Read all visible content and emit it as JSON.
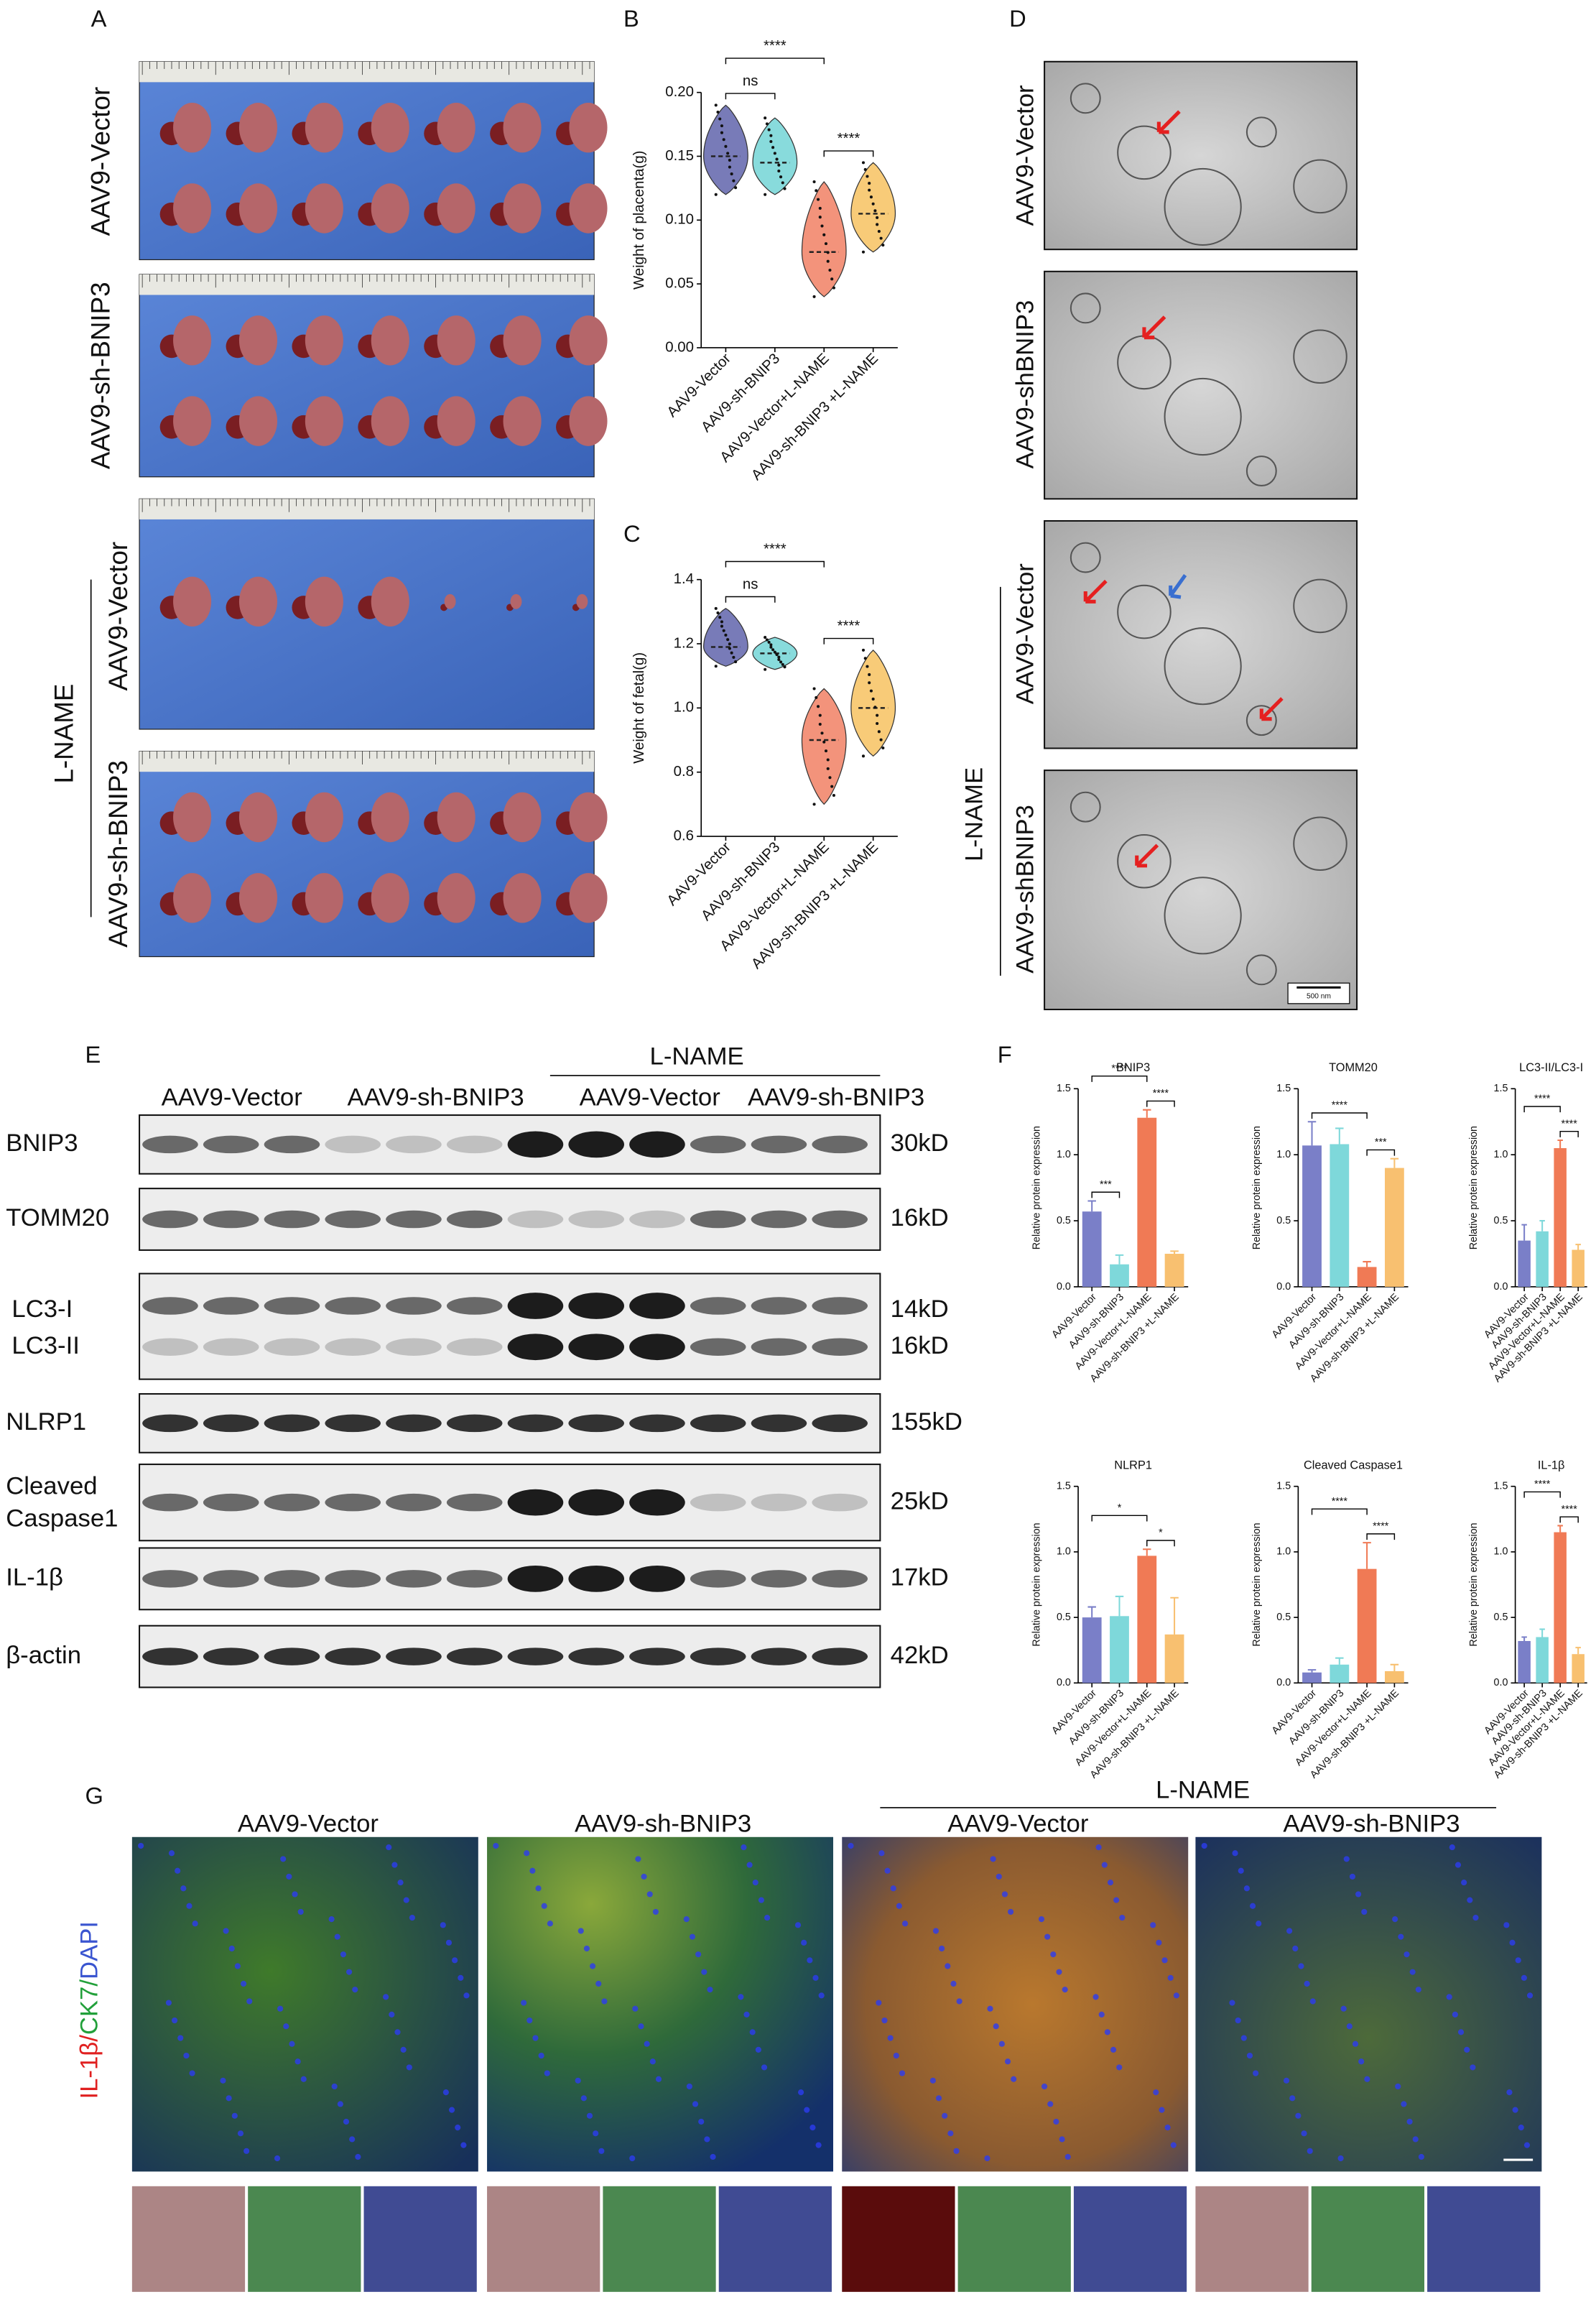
{
  "panel_labels": [
    "A",
    "B",
    "C",
    "D",
    "E",
    "F",
    "G"
  ],
  "panel_a": {
    "groups": [
      "AAV9-Vector",
      "AAV9-sh-BNIP3",
      "AAV9-Vector",
      "AAV9-sh-BNIP3"
    ],
    "treatment": "L-NAME"
  },
  "panel_d": {
    "groups": [
      "AAV9-Vector",
      "AAV9-shBNIP3",
      "AAV9-Vector",
      "AAV9-shBNIP3"
    ],
    "treatment": "L-NAME",
    "scale_bar": "500 nm"
  },
  "panel_e": {
    "treatment": "L-NAME",
    "groups": [
      "AAV9-Vector",
      "AAV9-sh-BNIP3",
      "AAV9-Vector",
      "AAV9-sh-BNIP3"
    ],
    "proteins": [
      {
        "name": "BNIP3",
        "size": "30kD"
      },
      {
        "name": "TOMM20",
        "size": "16kD"
      },
      {
        "name": "LC3-I",
        "size": "14kD"
      },
      {
        "name": "LC3-II",
        "size": "16kD"
      },
      {
        "name": "NLRP1",
        "size": "155kD"
      },
      {
        "name": "Cleaved Caspase1",
        "size": "25kD"
      },
      {
        "name": "IL-1β",
        "size": "17kD"
      },
      {
        "name": "β-actin",
        "size": "42kD"
      }
    ]
  },
  "panel_g": {
    "treatment": "L-NAME",
    "groups": [
      "AAV9-Vector",
      "AAV9-sh-BNIP3",
      "AAV9-Vector",
      "AAV9-sh-BNIP3"
    ],
    "stain": [
      {
        "text": "IL-1β/",
        "color": "#e02020"
      },
      {
        "text": "CK7/",
        "color": "#22a03a"
      },
      {
        "text": "DAPI",
        "color": "#3a55d0"
      }
    ]
  },
  "chart_data": [
    {
      "type": "violin",
      "y_label": "Weight of placenta(g)",
      "categories": [
        "AAV9-Vector",
        "AAV9-sh-BNIP3",
        "AAV9-Vector+L-NAME",
        "AAV9-sh-BNIP3 +L-NAME"
      ],
      "colors": [
        "#4b4fa0",
        "#60cfd0",
        "#ef6f4f",
        "#f6b94b"
      ],
      "median": [
        0.15,
        0.145,
        0.075,
        0.105
      ],
      "min": [
        0.12,
        0.12,
        0.04,
        0.075
      ],
      "max": [
        0.19,
        0.18,
        0.13,
        0.145
      ],
      "ylim": [
        0,
        0.2
      ],
      "yticks": [
        {
          "value": 0,
          "label": "0.00"
        },
        {
          "value": 0.05,
          "label": "0.05"
        },
        {
          "value": 0.1,
          "label": "0.10"
        },
        {
          "value": 0.15,
          "label": "0.15"
        },
        {
          "value": 0.2,
          "label": "0.20"
        }
      ],
      "annotations": [
        {
          "text": "****",
          "from": 0,
          "to": 2
        },
        {
          "text": "ns",
          "from": 0,
          "to": 1
        },
        {
          "text": "****",
          "from": 2,
          "to": 3
        }
      ]
    },
    {
      "type": "violin",
      "y_label": "Weight of fetal(g)",
      "categories": [
        "AAV9-Vector",
        "AAV9-sh-BNIP3",
        "AAV9-Vector+L-NAME",
        "AAV9-sh-BNIP3 +L-NAME"
      ],
      "colors": [
        "#4b4fa0",
        "#60cfd0",
        "#ef6f4f",
        "#f6b94b"
      ],
      "median": [
        1.19,
        1.17,
        0.9,
        1.0
      ],
      "min": [
        1.13,
        1.12,
        0.7,
        0.85
      ],
      "max": [
        1.31,
        1.22,
        1.06,
        1.18
      ],
      "ylim": [
        0.6,
        1.4
      ],
      "yticks": [
        0.6,
        0.8,
        {
          "value": 1,
          "label": "1.0"
        },
        1.2,
        1.4
      ],
      "annotations": [
        {
          "text": "****",
          "from": 0,
          "to": 2
        },
        {
          "text": "ns",
          "from": 0,
          "to": 1
        },
        {
          "text": "****",
          "from": 2,
          "to": 3
        }
      ]
    },
    {
      "type": "bar",
      "title": "BNIP3",
      "y_label": "Relative protein expression",
      "categories": [
        "AAV9-Vector",
        "AAV9-sh-BNIP3",
        "AAV9-Vector+L-NAME",
        "AAV9-sh-BNIP3 +L-NAME"
      ],
      "colors": [
        "#7a7fc8",
        "#7ed8da",
        "#f07a55",
        "#f8c070"
      ],
      "values": [
        0.57,
        0.17,
        1.28,
        0.25
      ],
      "errors": [
        0.08,
        0.07,
        0.06,
        0.02
      ],
      "ylim": [
        0,
        1.5
      ],
      "yticks": [
        {
          "value": 0,
          "label": "0.0"
        },
        0.5,
        {
          "value": 1,
          "label": "1.0"
        },
        1.5
      ],
      "annotations": [
        {
          "text": "****",
          "from": 0,
          "to": 2
        },
        {
          "text": "***",
          "from": 0,
          "to": 1
        },
        {
          "text": "****",
          "from": 2,
          "to": 3
        }
      ]
    },
    {
      "type": "bar",
      "title": "TOMM20",
      "y_label": "Relative protein expression",
      "categories": [
        "AAV9-Vector",
        "AAV9-sh-BNIP3",
        "AAV9-Vector+L-NAME",
        "AAV9-sh-BNIP3 +L-NAME"
      ],
      "colors": [
        "#7a7fc8",
        "#7ed8da",
        "#f07a55",
        "#f8c070"
      ],
      "values": [
        1.07,
        1.08,
        0.15,
        0.9
      ],
      "errors": [
        0.18,
        0.12,
        0.04,
        0.07
      ],
      "ylim": [
        0,
        1.5
      ],
      "yticks": [
        {
          "value": 0,
          "label": "0.0"
        },
        0.5,
        {
          "value": 1,
          "label": "1.0"
        },
        1.5
      ],
      "annotations": [
        {
          "text": "****",
          "from": 0,
          "to": 2
        },
        {
          "text": "***",
          "from": 2,
          "to": 3
        }
      ]
    },
    {
      "type": "bar",
      "title": "LC3-II/LC3-I",
      "y_label": "Relative protein expression",
      "categories": [
        "AAV9-Vector",
        "AAV9-sh-BNIP3",
        "AAV9-Vector+L-NAME",
        "AAV9-sh-BNIP3 +L-NAME"
      ],
      "colors": [
        "#7a7fc8",
        "#7ed8da",
        "#f07a55",
        "#f8c070"
      ],
      "values": [
        0.35,
        0.42,
        1.05,
        0.28
      ],
      "errors": [
        0.12,
        0.08,
        0.06,
        0.04
      ],
      "ylim": [
        0,
        1.5
      ],
      "yticks": [
        {
          "value": 0,
          "label": "0.0"
        },
        0.5,
        {
          "value": 1,
          "label": "1.0"
        },
        1.5
      ],
      "annotations": [
        {
          "text": "****",
          "from": 0,
          "to": 2
        },
        {
          "text": "****",
          "from": 2,
          "to": 3
        }
      ]
    },
    {
      "type": "bar",
      "title": "NLRP1",
      "y_label": "Relative protein expression",
      "categories": [
        "AAV9-Vector",
        "AAV9-sh-BNIP3",
        "AAV9-Vector+L-NAME",
        "AAV9-sh-BNIP3 +L-NAME"
      ],
      "colors": [
        "#7a7fc8",
        "#7ed8da",
        "#f07a55",
        "#f8c070"
      ],
      "values": [
        0.5,
        0.51,
        0.97,
        0.37
      ],
      "errors": [
        0.08,
        0.15,
        0.05,
        0.28
      ],
      "ylim": [
        0,
        1.5
      ],
      "yticks": [
        {
          "value": 0,
          "label": "0.0"
        },
        0.5,
        {
          "value": 1,
          "label": "1.0"
        },
        1.5
      ],
      "annotations": [
        {
          "text": "*",
          "from": 0,
          "to": 2
        },
        {
          "text": "*",
          "from": 2,
          "to": 3
        }
      ]
    },
    {
      "type": "bar",
      "title": "Cleaved Caspase1",
      "y_label": "Relative protein expression",
      "categories": [
        "AAV9-Vector",
        "AAV9-sh-BNIP3",
        "AAV9-Vector+L-NAME",
        "AAV9-sh-BNIP3 +L-NAME"
      ],
      "colors": [
        "#7a7fc8",
        "#7ed8da",
        "#f07a55",
        "#f8c070"
      ],
      "values": [
        0.08,
        0.14,
        0.87,
        0.09
      ],
      "errors": [
        0.02,
        0.05,
        0.2,
        0.05
      ],
      "ylim": [
        0,
        1.5
      ],
      "yticks": [
        {
          "value": 0,
          "label": "0.0"
        },
        0.5,
        {
          "value": 1,
          "label": "1.0"
        },
        1.5
      ],
      "annotations": [
        {
          "text": "****",
          "from": 0,
          "to": 2
        },
        {
          "text": "****",
          "from": 2,
          "to": 3
        }
      ]
    },
    {
      "type": "bar",
      "title": "IL-1β",
      "y_label": "Relative protein expression",
      "categories": [
        "AAV9-Vector",
        "AAV9-sh-BNIP3",
        "AAV9-Vector+L-NAME",
        "AAV9-sh-BNIP3 +L-NAME"
      ],
      "colors": [
        "#7a7fc8",
        "#7ed8da",
        "#f07a55",
        "#f8c070"
      ],
      "values": [
        0.32,
        0.35,
        1.15,
        0.22
      ],
      "errors": [
        0.03,
        0.06,
        0.05,
        0.05
      ],
      "ylim": [
        0,
        1.5
      ],
      "yticks": [
        {
          "value": 0,
          "label": "0.0"
        },
        0.5,
        {
          "value": 1,
          "label": "1.0"
        },
        1.5
      ],
      "annotations": [
        {
          "text": "****",
          "from": 0,
          "to": 2
        },
        {
          "text": "****",
          "from": 2,
          "to": 3
        }
      ]
    }
  ]
}
